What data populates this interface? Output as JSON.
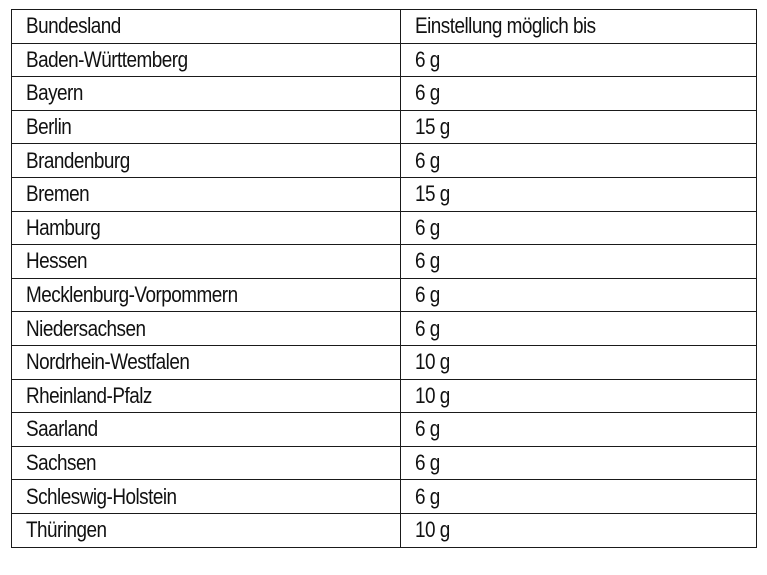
{
  "table": {
    "headers": [
      "Bundesland",
      "Einstellung möglich bis"
    ],
    "rows": [
      [
        "Baden-Württemberg",
        "6 g"
      ],
      [
        "Bayern",
        "6 g"
      ],
      [
        "Berlin",
        "15 g"
      ],
      [
        "Brandenburg",
        "6 g"
      ],
      [
        "Bremen",
        "15 g"
      ],
      [
        "Hamburg",
        "6 g"
      ],
      [
        "Hessen",
        "6 g"
      ],
      [
        "Mecklenburg-Vorpommern",
        "6 g"
      ],
      [
        "Niedersachsen",
        "6 g"
      ],
      [
        "Nordrhein-Westfalen",
        "10 g"
      ],
      [
        "Rheinland-Pfalz",
        "10 g"
      ],
      [
        "Saarland",
        "6 g"
      ],
      [
        "Sachsen",
        "6 g"
      ],
      [
        "Schleswig-Holstein",
        "6 g"
      ],
      [
        "Thüringen",
        "10 g"
      ]
    ]
  }
}
